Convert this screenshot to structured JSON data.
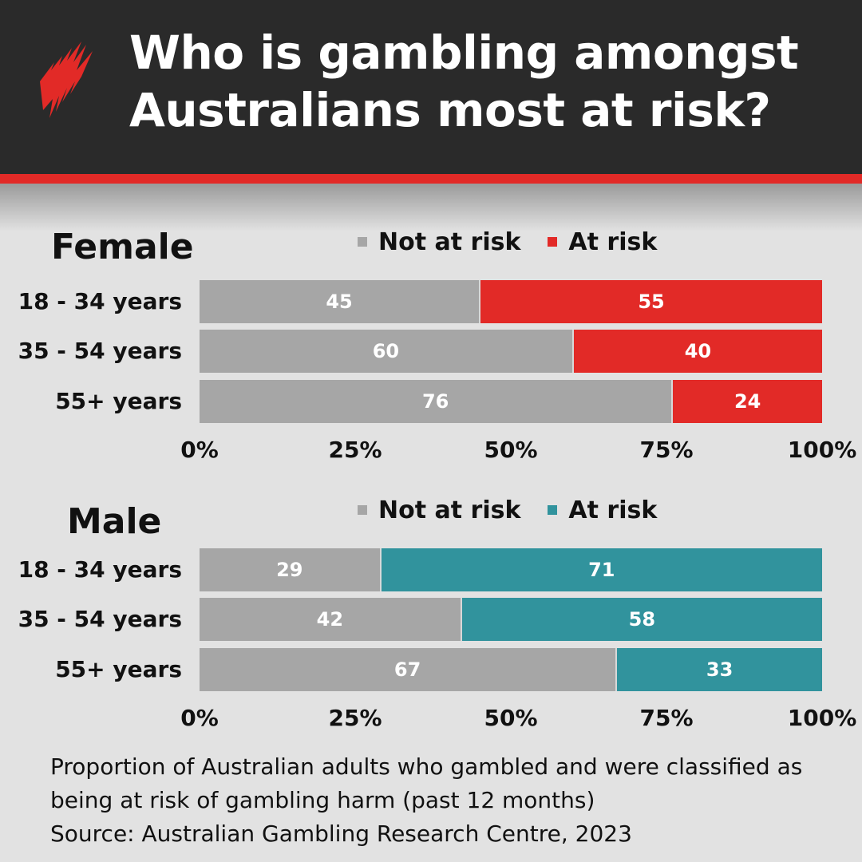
{
  "title": "Who is gambling amongst\nAustralians most at risk?",
  "logo": "sbs-logo",
  "chart_data": [
    {
      "type": "bar",
      "orientation": "horizontal",
      "stacked": true,
      "title": "Female",
      "categories": [
        "18 - 34 years",
        "35 - 54 years",
        "55+ years"
      ],
      "series": [
        {
          "name": "Not at risk",
          "color": "#a6a6a6",
          "values": [
            45,
            60,
            76
          ]
        },
        {
          "name": "At risk",
          "color": "#e22a27",
          "values": [
            55,
            40,
            24
          ]
        }
      ],
      "xlim": [
        0,
        100
      ],
      "xticks": [
        "0%",
        "25%",
        "50%",
        "75%",
        "100%"
      ],
      "legend": "top"
    },
    {
      "type": "bar",
      "orientation": "horizontal",
      "stacked": true,
      "title": "Male",
      "categories": [
        "18 - 34 years",
        "35 - 54 years",
        "55+ years"
      ],
      "series": [
        {
          "name": "Not at risk",
          "color": "#a6a6a6",
          "values": [
            29,
            42,
            67
          ]
        },
        {
          "name": "At risk",
          "color": "#31939d",
          "values": [
            71,
            58,
            33
          ]
        }
      ],
      "xlim": [
        0,
        100
      ],
      "xticks": [
        "0%",
        "25%",
        "50%",
        "75%",
        "100%"
      ],
      "legend": "top"
    }
  ],
  "note": {
    "line1": "Proportion of Australian adults who gambled and were classified as",
    "line2": "being at risk of gambling harm (past 12 months)",
    "source": "Source: Australian Gambling Research Centre, 2023"
  },
  "colors": {
    "header_bg": "#2a2a2a",
    "accent_red": "#e22a27",
    "accent_teal": "#31939d",
    "not_at_risk": "#a6a6a6"
  }
}
